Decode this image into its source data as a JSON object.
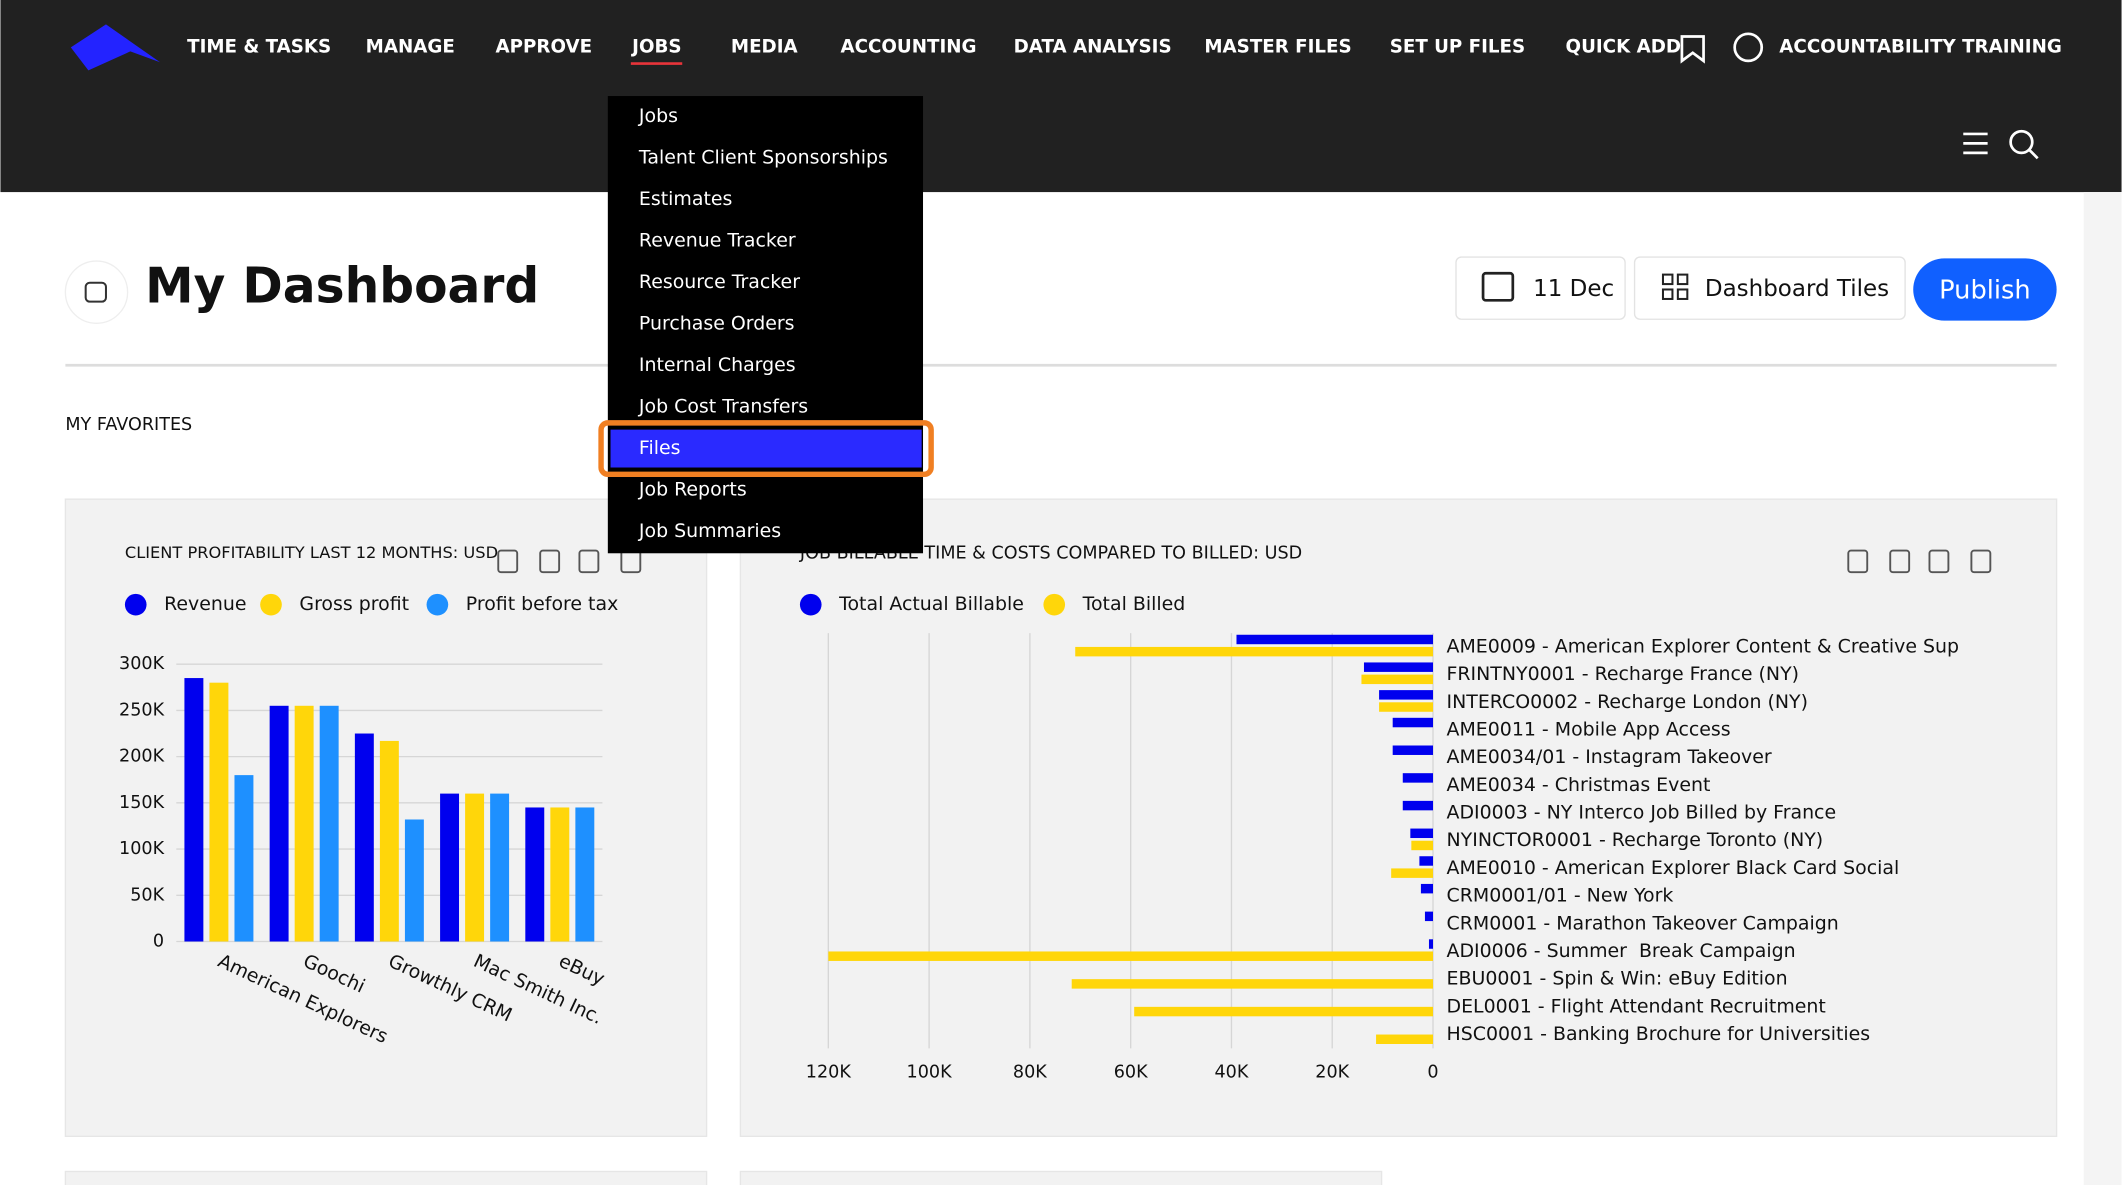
{
  "nav": {
    "items": [
      "TIME & TASKS",
      "MANAGE",
      "APPROVE",
      "JOBS",
      "MEDIA",
      "ACCOUNTING",
      "DATA ANALYSIS",
      "MASTER FILES",
      "SET UP FILES",
      "QUICK ADD"
    ],
    "user": "ACCOUNTABILITY TRAINING"
  },
  "menu": {
    "items": [
      "Jobs",
      "Talent Client Sponsorships",
      "Estimates",
      "Revenue Tracker",
      "Resource Tracker",
      "Purchase Orders",
      "Internal Charges",
      "Job Cost Transfers",
      "Files",
      "Job Reports",
      "Job Summaries"
    ]
  },
  "header": {
    "title": "My Dashboard",
    "date": "11 Dec",
    "tiles": "Dashboard Tiles",
    "publish": "Publish"
  },
  "favorites": "MY FAVORITES",
  "charts": [
    {
      "type": "bar",
      "title": "CLIENT PROFITABILITY LAST 12 MONTHS: USD",
      "categories": [
        "American Explorers",
        "Goochi",
        "Growthly CRM",
        "Mac Smith Inc.",
        "eBuy"
      ],
      "series": [
        {
          "name": "Revenue",
          "color": "#0000ee",
          "values": [
            285000,
            255000,
            225000,
            160000,
            145000
          ]
        },
        {
          "name": "Gross profit",
          "color": "#ffd60a",
          "values": [
            280000,
            255000,
            217000,
            160000,
            145000
          ]
        },
        {
          "name": "Profit before tax",
          "color": "#1e90ff",
          "values": [
            180000,
            255000,
            132000,
            160000,
            145000
          ]
        }
      ],
      "ylim": [
        0,
        300000
      ],
      "yticks": [
        0,
        {
          "value": 50000,
          "label": "50K"
        },
        {
          "value": 100000,
          "label": "100K"
        },
        {
          "value": 150000,
          "label": "150K"
        },
        {
          "value": 200000,
          "label": "200K"
        },
        {
          "value": 250000,
          "label": "250K"
        },
        {
          "value": 300000,
          "label": "300K"
        }
      ],
      "grid": true
    },
    {
      "type": "hbar",
      "title": "JOB BILLABLE TIME & COSTS COMPARED TO BILLED: USD",
      "categories": [
        "AME0009 - American Explorer Content & Creative Sup",
        "FRINTNY0001 - Recharge France (NY)",
        "INTERCO0002 - Recharge London (NY)",
        "AME0011 - Mobile App Access",
        "AME0034/01 - Instagram Takeover",
        "AME0034 - Christmas Event",
        "ADI0003 - NY Interco Job Billed by France",
        "NYINCTOR0001 - Recharge Toronto (NY)",
        "AME0010 - American Explorer Black Card Social",
        "CRM0001/01 - New York",
        "CRM0001 - Marathon Takeover Campaign",
        "ADI0006 - Summer  Break Campaign",
        "EBU0001 - Spin & Win: eBuy Edition",
        "DEL0001 - Flight Attendant Recruitment",
        "HSC0001 - Banking Brochure for Universities"
      ],
      "series": [
        {
          "name": "Total Actual Billable",
          "color": "#0000ee",
          "values": [
            39000,
            13700,
            10700,
            8000,
            8000,
            6000,
            6000,
            4500,
            2700,
            2400,
            1600,
            800,
            0,
            0,
            0
          ]
        },
        {
          "name": "Total Billed",
          "color": "#ffd60a",
          "values": [
            71000,
            14200,
            10700,
            0,
            0,
            0,
            0,
            4300,
            8300,
            0,
            0,
            120000,
            71700,
            59300,
            11300
          ]
        }
      ],
      "xlim": [
        0,
        120000
      ],
      "x_reversed": true,
      "xticks": [
        0,
        {
          "value": 20000,
          "label": "20K"
        },
        {
          "value": 40000,
          "label": "40K"
        },
        {
          "value": 60000,
          "label": "60K"
        },
        {
          "value": 80000,
          "label": "80K"
        },
        {
          "value": 100000,
          "label": "100K"
        },
        {
          "value": 120000,
          "label": "120K"
        }
      ],
      "grid": true
    }
  ]
}
